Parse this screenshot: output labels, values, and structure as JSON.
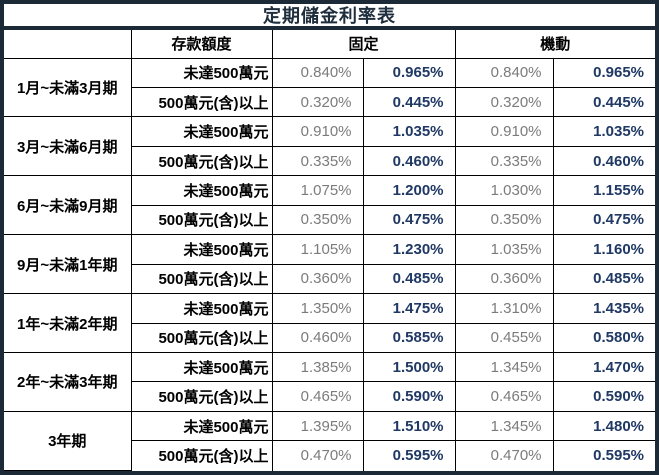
{
  "title": "定期儲金利率表",
  "colors": {
    "frame_border": "#1b2a36",
    "inner_border": "#000000",
    "title_text": "#1e2e3c",
    "rate_gray": "#7b7b7b",
    "rate_blue": "#1f3864",
    "background": "#ffffff"
  },
  "header": {
    "amount_label": "存款額度",
    "fixed_label": "固定",
    "floating_label": "機動"
  },
  "groups": [
    {
      "period": "1月~未滿3月期",
      "rows": [
        {
          "tier": "未達500萬元",
          "fixed_gray": "0.840%",
          "fixed_blue": "0.965%",
          "float_gray": "0.840%",
          "float_blue": "0.965%"
        },
        {
          "tier": "500萬元(含)以上",
          "fixed_gray": "0.320%",
          "fixed_blue": "0.445%",
          "float_gray": "0.320%",
          "float_blue": "0.445%"
        }
      ]
    },
    {
      "period": "3月~未滿6月期",
      "rows": [
        {
          "tier": "未達500萬元",
          "fixed_gray": "0.910%",
          "fixed_blue": "1.035%",
          "float_gray": "0.910%",
          "float_blue": "1.035%"
        },
        {
          "tier": "500萬元(含)以上",
          "fixed_gray": "0.335%",
          "fixed_blue": "0.460%",
          "float_gray": "0.335%",
          "float_blue": "0.460%"
        }
      ]
    },
    {
      "period": "6月~未滿9月期",
      "rows": [
        {
          "tier": "未達500萬元",
          "fixed_gray": "1.075%",
          "fixed_blue": "1.200%",
          "float_gray": "1.030%",
          "float_blue": "1.155%"
        },
        {
          "tier": "500萬元(含)以上",
          "fixed_gray": "0.350%",
          "fixed_blue": "0.475%",
          "float_gray": "0.350%",
          "float_blue": "0.475%"
        }
      ]
    },
    {
      "period": "9月~未滿1年期",
      "rows": [
        {
          "tier": "未達500萬元",
          "fixed_gray": "1.105%",
          "fixed_blue": "1.230%",
          "float_gray": "1.035%",
          "float_blue": "1.160%"
        },
        {
          "tier": "500萬元(含)以上",
          "fixed_gray": "0.360%",
          "fixed_blue": "0.485%",
          "float_gray": "0.360%",
          "float_blue": "0.485%"
        }
      ]
    },
    {
      "period": "1年~未滿2年期",
      "rows": [
        {
          "tier": "未達500萬元",
          "fixed_gray": "1.350%",
          "fixed_blue": "1.475%",
          "float_gray": "1.310%",
          "float_blue": "1.435%"
        },
        {
          "tier": "500萬元(含)以上",
          "fixed_gray": "0.460%",
          "fixed_blue": "0.585%",
          "float_gray": "0.455%",
          "float_blue": "0.580%"
        }
      ]
    },
    {
      "period": "2年~未滿3年期",
      "rows": [
        {
          "tier": "未達500萬元",
          "fixed_gray": "1.385%",
          "fixed_blue": "1.500%",
          "float_gray": "1.345%",
          "float_blue": "1.470%"
        },
        {
          "tier": "500萬元(含)以上",
          "fixed_gray": "0.465%",
          "fixed_blue": "0.590%",
          "float_gray": "0.465%",
          "float_blue": "0.590%"
        }
      ]
    },
    {
      "period": "3年期",
      "rows": [
        {
          "tier": "未達500萬元",
          "fixed_gray": "1.395%",
          "fixed_blue": "1.510%",
          "float_gray": "1.345%",
          "float_blue": "1.480%"
        },
        {
          "tier": "500萬元(含)以上",
          "fixed_gray": "0.470%",
          "fixed_blue": "0.595%",
          "float_gray": "0.470%",
          "float_blue": "0.595%"
        }
      ]
    }
  ]
}
